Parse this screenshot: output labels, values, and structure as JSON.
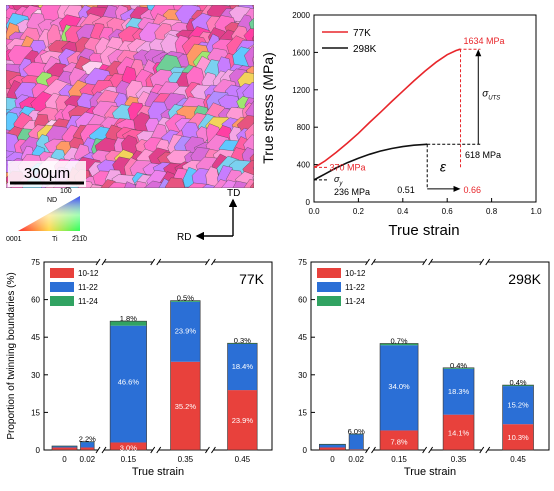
{
  "micrograph": {
    "scale_bar_label": "300μm",
    "ipf_key": {
      "labels": {
        "nd": "ND",
        "top": "10̅0",
        "left": "0001",
        "right": "2̅11̅0",
        "element": "Ti"
      }
    },
    "sample_axes": {
      "td": "TD",
      "rd": "RD"
    },
    "palette": [
      "#ff6ec7",
      "#f77fd4",
      "#e0408c",
      "#ff9ad5",
      "#d96bd9",
      "#ff5da2",
      "#f4a6e6",
      "#c77dff",
      "#ff7eb9",
      "#e75480",
      "#7ad1f0",
      "#6fcf97",
      "#f3d35b",
      "#ff9966",
      "#9fe870",
      "#b28dff",
      "#5fc8ff",
      "#ffd1f0",
      "#ee82ee",
      "#ff3fa4"
    ]
  },
  "stress_chart": {
    "xlabel": "True strain",
    "ylabel": "True stress (MPa)",
    "xlim": [
      0,
      1.0
    ],
    "ylim": [
      0,
      2000
    ],
    "xticks": [
      "0.0",
      "0.2",
      "0.4",
      "0.6",
      "0.8",
      "1.0"
    ],
    "yticks": [
      "0",
      "400",
      "800",
      "1200",
      "1600",
      "2000"
    ],
    "annotations": {
      "uts_77": "1634 MPa",
      "yield_77": "370 MPa",
      "yield_298": "236 MPa",
      "uts_298": "618 MPa",
      "strain_298": "0.51",
      "strain_77": "0.66",
      "sigma_y": "σ",
      "sigma_y_sub": "y",
      "sigma_uts": "σ",
      "sigma_uts_sub": "UTS",
      "epsilon": "ε"
    }
  },
  "chart_data": [
    {
      "type": "line",
      "xlabel": "True strain",
      "ylabel": "True stress (MPa)",
      "xlim": [
        0,
        1.0
      ],
      "ylim": [
        0,
        2000
      ],
      "legend_position": "top-left",
      "series": [
        {
          "name": "77K",
          "color": "#e8262b",
          "x": [
            0.0,
            0.02,
            0.05,
            0.1,
            0.15,
            0.2,
            0.25,
            0.3,
            0.35,
            0.4,
            0.45,
            0.5,
            0.55,
            0.6,
            0.64,
            0.66
          ],
          "y": [
            370,
            395,
            440,
            530,
            630,
            735,
            850,
            960,
            1075,
            1185,
            1295,
            1400,
            1495,
            1575,
            1620,
            1634
          ]
        },
        {
          "name": "298K",
          "color": "#111111",
          "x": [
            0.0,
            0.02,
            0.05,
            0.1,
            0.15,
            0.2,
            0.25,
            0.3,
            0.35,
            0.4,
            0.45,
            0.5,
            0.51
          ],
          "y": [
            236,
            262,
            300,
            365,
            420,
            468,
            510,
            545,
            572,
            593,
            607,
            616,
            618
          ]
        }
      ]
    },
    {
      "type": "bar",
      "title": "77K",
      "xlabel": "True strain",
      "ylabel": "Proportion of twinning boundaries (%)",
      "ylim": [
        0,
        75
      ],
      "yticks": [
        "0",
        "15",
        "30",
        "45",
        "60",
        "75"
      ],
      "categories": [
        "0",
        "0.02",
        "0.15",
        "0.35",
        "0.45"
      ],
      "stacked": true,
      "series": [
        {
          "name": "10-12",
          "color": "#e8413c",
          "values": [
            1.0,
            1.0,
            3.0,
            35.2,
            23.9
          ]
        },
        {
          "name": "11-22",
          "color": "#2b6fd6",
          "values": [
            0.5,
            2.2,
            46.6,
            23.9,
            18.4
          ]
        },
        {
          "name": "11-24",
          "color": "#31a362",
          "values": [
            0.1,
            0.1,
            1.8,
            0.5,
            0.3
          ]
        }
      ],
      "labels": {
        "a": "2.2%",
        "b": "3.0%",
        "c": "46.6%",
        "d": "1.8%",
        "e": "35.2%",
        "f": "23.9%",
        "g": "0.5%",
        "h": "23.9%",
        "i": "18.4%",
        "j": "0.3%"
      }
    },
    {
      "type": "bar",
      "title": "298K",
      "xlabel": "True strain",
      "ylabel": "",
      "ylim": [
        0,
        75
      ],
      "yticks": [
        "0",
        "15",
        "30",
        "45",
        "60",
        "75"
      ],
      "categories": [
        "0",
        "0.02",
        "0.15",
        "0.35",
        "0.45"
      ],
      "stacked": true,
      "series": [
        {
          "name": "10-12",
          "color": "#e8413c",
          "values": [
            1.0,
            0.3,
            7.8,
            14.1,
            10.3
          ]
        },
        {
          "name": "11-22",
          "color": "#2b6fd6",
          "values": [
            1.2,
            6.0,
            34.0,
            18.3,
            15.2
          ]
        },
        {
          "name": "11-24",
          "color": "#31a362",
          "values": [
            0.1,
            0.1,
            0.7,
            0.4,
            0.4
          ]
        }
      ],
      "labels": {
        "a": "6.0%",
        "b": "7.8%",
        "c": "34.0%",
        "d": "0.7%",
        "e": "14.1%",
        "f": "18.3%",
        "g": "0.4%",
        "h": "10.3%",
        "i": "15.2%",
        "j": "0.4%"
      }
    }
  ]
}
